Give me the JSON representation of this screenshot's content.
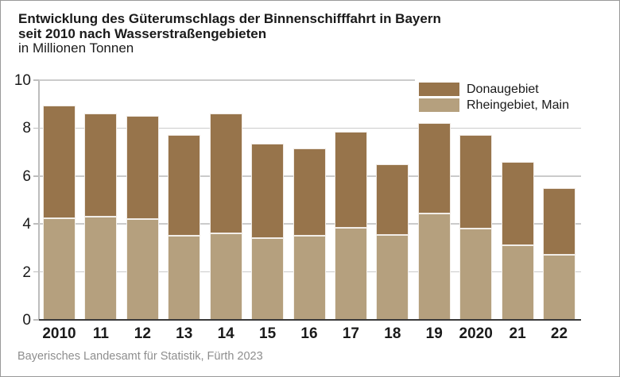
{
  "header": {
    "title_line1": "Entwicklung des Güterumschlags der Binnenschifffahrt in Bayern",
    "title_line2": "seit 2010 nach Wasserstraßengebieten",
    "subtitle": "in Millionen Tonnen"
  },
  "footer": {
    "source": "Bayerisches Landesamt für Statistik, Fürth 2023"
  },
  "chart_data": {
    "type": "bar",
    "stacked": true,
    "title": "Entwicklung des Güterumschlags der Binnenschifffahrt in Bayern seit 2010 nach Wasserstraßengebieten",
    "ylabel": "in Millionen Tonnen",
    "categories": [
      "2010",
      "11",
      "12",
      "13",
      "14",
      "15",
      "16",
      "17",
      "18",
      "19",
      "2020",
      "21",
      "22"
    ],
    "series": [
      {
        "name": "Rheingebiet, Main",
        "color": "#b5a07e",
        "values": [
          4.25,
          4.3,
          4.2,
          3.5,
          3.6,
          3.4,
          3.5,
          3.85,
          3.55,
          4.45,
          3.8,
          3.1,
          2.7
        ]
      },
      {
        "name": "Donaugebiet",
        "color": "#97744b",
        "values": [
          4.7,
          4.3,
          4.3,
          4.2,
          5.0,
          3.95,
          3.65,
          4.0,
          2.95,
          3.75,
          3.9,
          3.5,
          2.8
        ]
      }
    ],
    "totals": [
      8.95,
      8.6,
      8.5,
      7.7,
      8.6,
      7.35,
      7.15,
      7.85,
      6.5,
      8.2,
      7.7,
      6.6,
      5.5
    ],
    "ylim": [
      0,
      10
    ],
    "yticks": [
      0,
      2,
      4,
      6,
      8,
      10
    ],
    "grid": true,
    "legend_position": "top-right",
    "legend_order": [
      "Donaugebiet",
      "Rheingebiet, Main"
    ]
  },
  "colors": {
    "donau": "#97744b",
    "rhein": "#b5a07e",
    "gridline": "#cbcbcb",
    "axis": "#bdbdbd",
    "baseline": "#3a3a3a",
    "text": "#1a1a1a",
    "muted_text": "#8e8e8e",
    "frame_border": "#999999",
    "background": "#ffffff"
  }
}
